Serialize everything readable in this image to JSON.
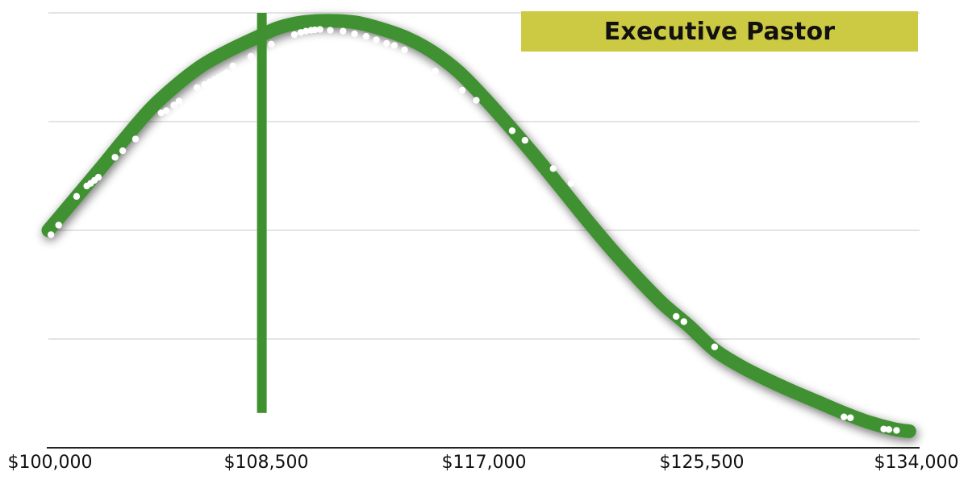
{
  "chart_data": {
    "type": "line",
    "title": "Executive Pastor",
    "colors": {
      "curve": "#3f9130",
      "marker_line": "#3f9130",
      "points": "#ffffff",
      "title_bg": "#ccc943",
      "grid": "#c8c8c8",
      "axis": "#222222"
    },
    "xlim": [
      100000,
      134000
    ],
    "ylim": [
      0,
      1
    ],
    "grid": true,
    "x_tick_values": [
      100000,
      108500,
      117000,
      125500,
      134000
    ],
    "x_tick_labels": [
      "$100,000",
      "$108,500",
      "$117,000",
      "$125,500",
      "$134,000"
    ],
    "marker_x": 108330,
    "marker_y_range": [
      0.08,
      1.0
    ],
    "curve": {
      "x": [
        100000,
        101000,
        102000,
        103000,
        104000,
        105000,
        106000,
        107000,
        108000,
        109000,
        110000,
        111000,
        112000,
        113000,
        114000,
        115000,
        116000,
        117000,
        118000,
        119000,
        120000,
        121000,
        122000,
        123000,
        124000,
        125000,
        126000,
        127000,
        128000,
        129000,
        130000,
        131000,
        132000,
        133000,
        133600
      ],
      "y": [
        0.5,
        0.57,
        0.64,
        0.712,
        0.78,
        0.834,
        0.879,
        0.912,
        0.94,
        0.966,
        0.979,
        0.982,
        0.978,
        0.963,
        0.942,
        0.91,
        0.865,
        0.805,
        0.739,
        0.67,
        0.598,
        0.525,
        0.455,
        0.39,
        0.33,
        0.28,
        0.225,
        0.188,
        0.158,
        0.131,
        0.106,
        0.081,
        0.059,
        0.043,
        0.038
      ]
    },
    "points": {
      "x": [
        100100,
        100400,
        101100,
        101500,
        101650,
        101800,
        101950,
        102600,
        102900,
        103400,
        104400,
        104600,
        104900,
        105100,
        105800,
        106100,
        106300,
        106500,
        106650,
        106800,
        106950,
        107200,
        107900,
        108700,
        109600,
        109850,
        110050,
        110250,
        110400,
        110600,
        111000,
        111500,
        111950,
        112400,
        112800,
        113200,
        113500,
        113900,
        115100,
        116150,
        116700,
        118100,
        118600,
        119700,
        120400,
        121300,
        121700,
        124500,
        124800,
        126000,
        131050,
        131300,
        132600,
        132800,
        133100
      ],
      "y": [
        0.49,
        0.512,
        0.578,
        0.602,
        0.608,
        0.615,
        0.622,
        0.668,
        0.683,
        0.71,
        0.77,
        0.775,
        0.788,
        0.797,
        0.828,
        0.835,
        0.841,
        0.847,
        0.852,
        0.857,
        0.862,
        0.878,
        0.9,
        0.928,
        0.95,
        0.955,
        0.958,
        0.96,
        0.961,
        0.962,
        0.96,
        0.958,
        0.952,
        0.946,
        0.938,
        0.93,
        0.925,
        0.915,
        0.866,
        0.822,
        0.799,
        0.729,
        0.707,
        0.642,
        0.608,
        0.563,
        0.539,
        0.302,
        0.29,
        0.232,
        0.071,
        0.069,
        0.043,
        0.042,
        0.04
      ]
    }
  }
}
